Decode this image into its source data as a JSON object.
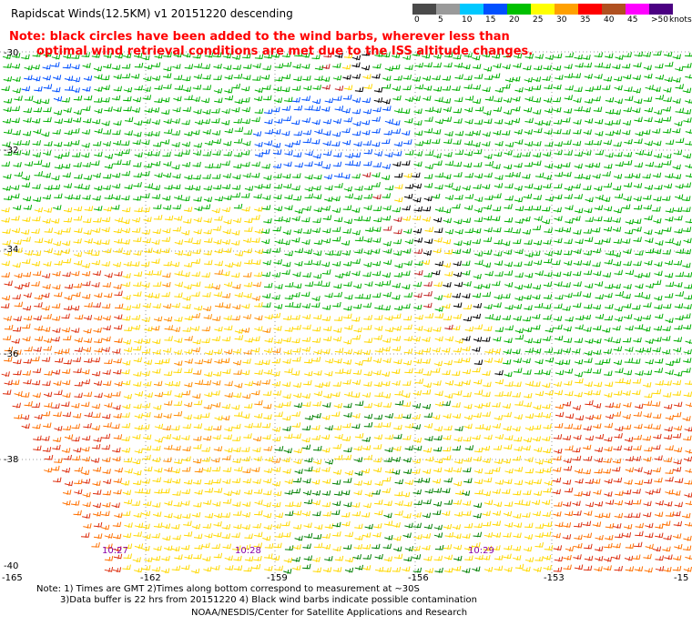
{
  "title": "Rapidscat Winds(12.5KM) v1 20151220 descending",
  "notes": {
    "line1": "Note: black circles have been added to the wind barbs, wherever less than",
    "line2": "optimal wind retrieval conditions are met due to the ISS altitude changes."
  },
  "legend": {
    "units": "knots",
    "labels": [
      "0",
      "5",
      "10",
      "15",
      "20",
      "25",
      "30",
      "35",
      "40",
      "45",
      ">50"
    ],
    "colors": [
      "#4a4a4a",
      "#9a9a9a",
      "#00c8ff",
      "#0050ff",
      "#00c000",
      "#ffff00",
      "#ffa000",
      "#ff0000",
      "#b05020",
      "#ff00ff",
      "#4b0082"
    ]
  },
  "axes": {
    "lat_labels": [
      "-30",
      "-32",
      "-34",
      "-36",
      "-38",
      "-40"
    ],
    "lon_labels": [
      "-165",
      "-162",
      "-159",
      "-156",
      "-153",
      "-15"
    ]
  },
  "time_labels": [
    "10:27",
    "10:28",
    "10:29"
  ],
  "footnotes": {
    "line1": "Note: 1) Times are GMT 2)Times along bottom correspond to measurement at ~30S",
    "line2": "3)Data buffer is 22 hrs from 20151220 4) Black wind barbs indicate possible contamination"
  },
  "credit": "NOAA/NESDIS/Center for Satellite Applications and Research"
}
